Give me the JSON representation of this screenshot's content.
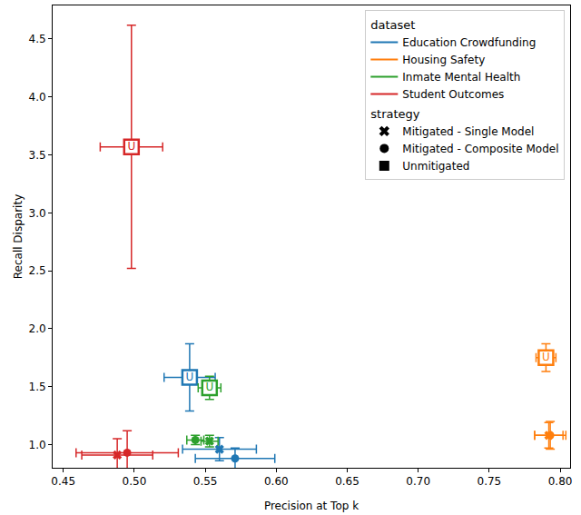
{
  "chart_data": {
    "type": "scatter",
    "xlabel": "Precision at Top k",
    "ylabel": "Recall Disparity",
    "xlim": [
      0.4425,
      0.807
    ],
    "ylim": [
      0.8,
      4.79
    ],
    "xticks": [
      {
        "value": 0.45,
        "label": "0.45"
      },
      {
        "value": 0.5,
        "label": "0.50"
      },
      {
        "value": 0.55,
        "label": "0.55"
      },
      {
        "value": 0.6,
        "label": "0.60"
      },
      {
        "value": 0.65,
        "label": "0.65"
      },
      {
        "value": 0.7,
        "label": "0.70"
      },
      {
        "value": 0.75,
        "label": "0.75"
      },
      {
        "value": 0.8,
        "label": "0.80"
      }
    ],
    "yticks": [
      {
        "value": 1,
        "label": "1.0"
      },
      {
        "value": 1.5,
        "label": "1.5"
      },
      {
        "value": 2,
        "label": "2.0"
      },
      {
        "value": 2.5,
        "label": "2.5"
      },
      {
        "value": 3,
        "label": "3.0"
      },
      {
        "value": 3.5,
        "label": "3.5"
      },
      {
        "value": 4,
        "label": "4.0"
      },
      {
        "value": 4.5,
        "label": "4.5"
      }
    ],
    "grid": false,
    "legend": "upper right",
    "legend_titles": [
      "dataset",
      "strategy"
    ],
    "datasets": [
      {
        "name": "Education Crowdfunding",
        "color": "#1f77b4"
      },
      {
        "name": "Housing Safety",
        "color": "#ff7f0e"
      },
      {
        "name": "Inmate Mental Health",
        "color": "#2ca02c"
      },
      {
        "name": "Student Outcomes",
        "color": "#d62728"
      }
    ],
    "strategies": [
      {
        "name": "Mitigated - Single Model",
        "marker": "x"
      },
      {
        "name": "Mitigated - Composite Model",
        "marker": "circle"
      },
      {
        "name": "Unmitigated",
        "marker": "U"
      }
    ],
    "points": [
      {
        "dataset": "Education Crowdfunding",
        "strategy": "Unmitigated",
        "x": 0.539,
        "y": 1.58,
        "x_error": 0.018,
        "y_error": 0.29
      },
      {
        "dataset": "Education Crowdfunding",
        "strategy": "Mitigated - Single Model",
        "x": 0.56,
        "y": 0.96,
        "x_error": 0.026,
        "y_error": 0.1
      },
      {
        "dataset": "Education Crowdfunding",
        "strategy": "Mitigated - Composite Model",
        "x": 0.571,
        "y": 0.88,
        "x_error": 0.028,
        "y_error": 0.09
      },
      {
        "dataset": "Housing Safety",
        "strategy": "Unmitigated",
        "x": 0.79,
        "y": 1.75,
        "x_error": 0.007,
        "y_error": 0.12
      },
      {
        "dataset": "Housing Safety",
        "strategy": "Mitigated - Single Model",
        "x": 0.792,
        "y": 1.08,
        "x_error": 0.01,
        "y_error": 0.11
      },
      {
        "dataset": "Housing Safety",
        "strategy": "Mitigated - Composite Model",
        "x": 0.793,
        "y": 1.08,
        "x_error": 0.011,
        "y_error": 0.12
      },
      {
        "dataset": "Inmate Mental Health",
        "strategy": "Unmitigated",
        "x": 0.553,
        "y": 1.49,
        "x_error": 0.008,
        "y_error": 0.1
      },
      {
        "dataset": "Inmate Mental Health",
        "strategy": "Mitigated - Single Model",
        "x": 0.553,
        "y": 1.03,
        "x_error": 0.006,
        "y_error": 0.05
      },
      {
        "dataset": "Inmate Mental Health",
        "strategy": "Mitigated - Composite Model",
        "x": 0.543,
        "y": 1.04,
        "x_error": 0.006,
        "y_error": 0.04
      },
      {
        "dataset": "Student Outcomes",
        "strategy": "Unmitigated",
        "x": 0.498,
        "y": 3.57,
        "x_error": 0.022,
        "y_error": 1.05
      },
      {
        "dataset": "Student Outcomes",
        "strategy": "Mitigated - Single Model",
        "x": 0.488,
        "y": 0.91,
        "x_error": 0.025,
        "y_error": 0.14
      },
      {
        "dataset": "Student Outcomes",
        "strategy": "Mitigated - Composite Model",
        "x": 0.495,
        "y": 0.93,
        "x_error": 0.036,
        "y_error": 0.19
      }
    ]
  }
}
